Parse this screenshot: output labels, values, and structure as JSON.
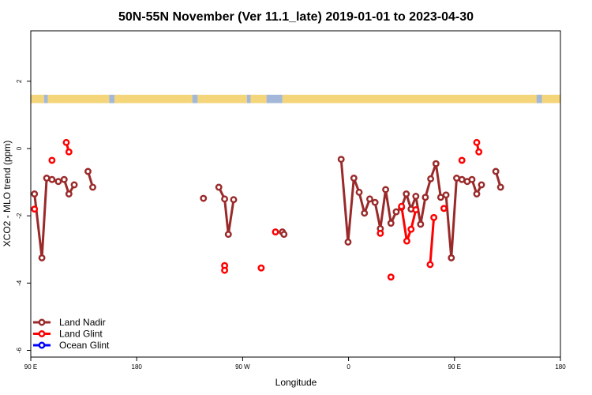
{
  "chart_data": {
    "type": "line",
    "title": "50N-55N November (Ver 11.1_late)   2019-01-01 to 2023-04-30",
    "xlabel": "Longitude",
    "ylabel": "XCO2 - MLO trend (ppm)",
    "xlim": [
      0,
      100
    ],
    "ylim": [
      -6.2,
      3.5
    ],
    "x_ticks": [
      {
        "pos": 0,
        "label": "90 E"
      },
      {
        "pos": 20,
        "label": "180"
      },
      {
        "pos": 40,
        "label": "90 W"
      },
      {
        "pos": 60,
        "label": "0"
      },
      {
        "pos": 80,
        "label": "90 E"
      },
      {
        "pos": 100,
        "label": "180"
      }
    ],
    "y_ticks": [
      2,
      0,
      -2,
      -4,
      -6
    ],
    "grid": false,
    "legend_position": "bottom-left",
    "colors": {
      "land_nadir": "#9a2a2a",
      "land_glint": "#ff0000",
      "ocean_glint": "#0000ff",
      "strip_land": "#f5d57a",
      "strip_ocean": "#a3b8d8"
    },
    "series": [
      {
        "name": "Land Nadir",
        "color": "#9a2a2a",
        "segments": [
          [
            [
              0.7,
              -1.35
            ],
            [
              2.1,
              -3.25
            ],
            [
              3.0,
              -0.88
            ],
            [
              4.0,
              -0.92
            ],
            [
              5.2,
              -0.98
            ],
            [
              6.3,
              -0.92
            ],
            [
              7.2,
              -1.35
            ],
            [
              8.2,
              -1.08
            ]
          ],
          [
            [
              10.8,
              -0.68
            ],
            [
              11.7,
              -1.15
            ]
          ],
          [
            [
              32.6,
              -1.48
            ]
          ],
          [
            [
              35.5,
              -1.15
            ],
            [
              36.6,
              -1.5
            ],
            [
              37.3,
              -2.55
            ],
            [
              38.3,
              -1.52
            ]
          ],
          [
            [
              47.5,
              -2.48
            ],
            [
              47.8,
              -2.55
            ]
          ],
          [
            [
              58.6,
              -0.32
            ],
            [
              59.9,
              -2.78
            ],
            [
              61.0,
              -0.88
            ],
            [
              62.0,
              -1.3
            ],
            [
              63.0,
              -1.92
            ],
            [
              64.0,
              -1.5
            ],
            [
              65.0,
              -1.6
            ],
            [
              66.0,
              -2.38
            ],
            [
              67.0,
              -1.22
            ],
            [
              68.0,
              -2.22
            ],
            [
              69.0,
              -1.88
            ],
            [
              70.0,
              -1.75
            ],
            [
              70.9,
              -1.35
            ],
            [
              71.8,
              -1.8
            ],
            [
              72.7,
              -1.42
            ],
            [
              73.6,
              -2.25
            ],
            [
              74.5,
              -1.45
            ],
            [
              75.5,
              -0.9
            ],
            [
              76.5,
              -0.45
            ],
            [
              77.4,
              -1.45
            ],
            [
              78.4,
              -1.38
            ],
            [
              79.4,
              -3.25
            ],
            [
              80.4,
              -0.88
            ],
            [
              81.4,
              -0.92
            ],
            [
              82.4,
              -0.98
            ],
            [
              83.3,
              -0.92
            ],
            [
              84.2,
              -1.35
            ],
            [
              85.1,
              -1.08
            ]
          ],
          [
            [
              87.8,
              -0.68
            ],
            [
              88.7,
              -1.15
            ]
          ]
        ]
      },
      {
        "name": "Land Glint",
        "color": "#ff0000",
        "segments": [
          [
            [
              0.7,
              -1.8
            ]
          ],
          [
            [
              4.0,
              -0.35
            ]
          ],
          [
            [
              6.7,
              0.18
            ],
            [
              7.2,
              -0.1
            ]
          ],
          [
            [
              36.6,
              -3.48
            ],
            [
              36.6,
              -3.62
            ]
          ],
          [
            [
              43.5,
              -3.55
            ]
          ],
          [
            [
              46.2,
              -2.48
            ]
          ],
          [
            [
              66.0,
              -2.52
            ]
          ],
          [
            [
              68.0,
              -3.82
            ]
          ],
          [
            [
              70.0,
              -1.72
            ],
            [
              71.0,
              -2.75
            ],
            [
              71.8,
              -2.4
            ],
            [
              72.7,
              -1.82
            ]
          ],
          [
            [
              75.4,
              -3.45
            ],
            [
              76.1,
              -2.05
            ]
          ],
          [
            [
              78.0,
              -1.78
            ]
          ],
          [
            [
              81.4,
              -0.35
            ]
          ],
          [
            [
              84.2,
              0.18
            ],
            [
              84.6,
              -0.1
            ]
          ]
        ]
      },
      {
        "name": "Ocean Glint",
        "color": "#0000ff",
        "segments": []
      }
    ],
    "land_ocean_strip": {
      "y_range": [
        1.35,
        1.6
      ],
      "land_intervals": [
        [
          0,
          2.5
        ],
        [
          3.2,
          14.8
        ],
        [
          15.8,
          30.5
        ],
        [
          31.5,
          40.8
        ],
        [
          41.5,
          44.5
        ],
        [
          47.5,
          100
        ]
      ],
      "ocean_intervals": [
        [
          2.5,
          3.2
        ],
        [
          14.8,
          15.8
        ],
        [
          30.5,
          31.5
        ],
        [
          40.8,
          41.5
        ],
        [
          44.5,
          47.5
        ],
        [
          95.5,
          96.5
        ]
      ]
    }
  },
  "legend": [
    {
      "label": "Land Nadir",
      "color": "#9a2a2a"
    },
    {
      "label": "Land Glint",
      "color": "#ff0000"
    },
    {
      "label": "Ocean Glint",
      "color": "#0000ff"
    }
  ]
}
